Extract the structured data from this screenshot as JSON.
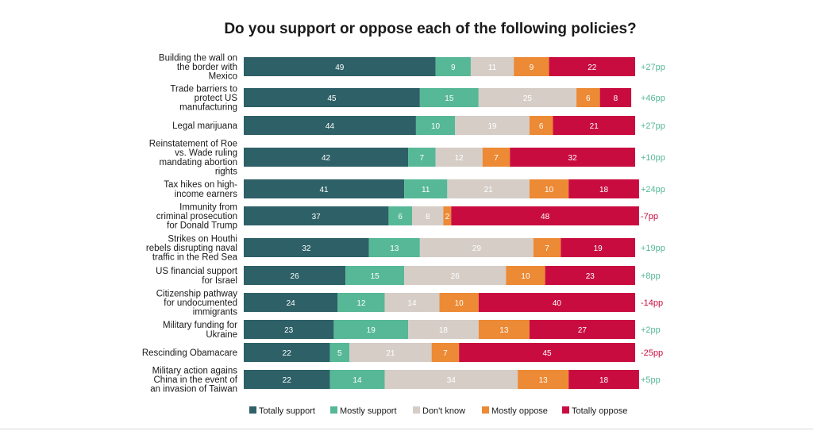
{
  "chart_data": {
    "type": "bar",
    "stacked": true,
    "orientation": "horizontal",
    "title": "Do you support or oppose each of the following policies?",
    "categories": [
      "Building the wall on the border with Mexico",
      "Trade barriers to protect US manufacturing",
      "Legal marijuana",
      "Reinstatement of Roe vs. Wade ruling mandating abortion rights",
      "Tax hikes on high-income earners",
      "Immunity from criminal prosecution for Donald Trump",
      "Strikes on Houthi rebels disrupting naval traffic in the Red Sea",
      "US financial support for Israel",
      "Citizenship pathway for undocumented immigrants",
      "Military funding for Ukraine",
      "Rescinding Obamacare",
      "Military action agains China in the event of an invasion of Taiwan"
    ],
    "category_lines": [
      [
        "Building the wall on",
        "the border with",
        "Mexico"
      ],
      [
        "Trade barriers to",
        "protect US",
        "manufacturing"
      ],
      [
        "Legal marijuana"
      ],
      [
        "Reinstatement of Roe",
        "vs. Wade ruling",
        "mandating abortion",
        "rights"
      ],
      [
        "Tax hikes on high-",
        "income earners"
      ],
      [
        "Immunity from",
        "criminal prosecution",
        "for Donald Trump"
      ],
      [
        "Strikes on Houthi",
        "rebels disrupting naval",
        "traffic in the Red Sea"
      ],
      [
        "US financial support",
        "for Israel"
      ],
      [
        "Citizenship pathway",
        "for undocumented",
        "immigrants"
      ],
      [
        "Military funding for",
        "Ukraine"
      ],
      [
        "Rescinding Obamacare"
      ],
      [
        "Military action agains",
        "China in the event of",
        "an invasion of Taiwan"
      ]
    ],
    "series": [
      {
        "name": "Totally support",
        "color": "#2e6067",
        "label_color": "#ffffff",
        "values": [
          49,
          45,
          44,
          42,
          41,
          37,
          32,
          26,
          24,
          23,
          22,
          22
        ]
      },
      {
        "name": "Mostly support",
        "color": "#56b896",
        "label_color": "#ffffff",
        "values": [
          9,
          15,
          10,
          7,
          11,
          6,
          13,
          15,
          12,
          19,
          5,
          14
        ]
      },
      {
        "name": "Don't know",
        "color": "#d5cdc6",
        "label_color": "#ffffff",
        "values": [
          11,
          25,
          19,
          12,
          21,
          8,
          29,
          26,
          14,
          18,
          21,
          34
        ]
      },
      {
        "name": "Mostly oppose",
        "color": "#ec8a35",
        "label_color": "#ffffff",
        "values": [
          9,
          6,
          6,
          7,
          10,
          2,
          7,
          10,
          10,
          13,
          7,
          13
        ]
      },
      {
        "name": "Totally oppose",
        "color": "#c90c40",
        "label_color": "#ffffff",
        "values": [
          22,
          8,
          21,
          32,
          18,
          48,
          19,
          23,
          40,
          27,
          45,
          18
        ]
      }
    ],
    "net": [
      "+27pp",
      "+46pp",
      "+27pp",
      "+10pp",
      "+24pp",
      "-7pp",
      "+19pp",
      "+8pp",
      "-14pp",
      "+2pp",
      "-25pp",
      "+5pp"
    ],
    "net_colors": {
      "positive": "#56b896",
      "negative": "#c90c40"
    },
    "legend_position": "bottom",
    "xlim": [
      0,
      100
    ],
    "grid": false
  }
}
